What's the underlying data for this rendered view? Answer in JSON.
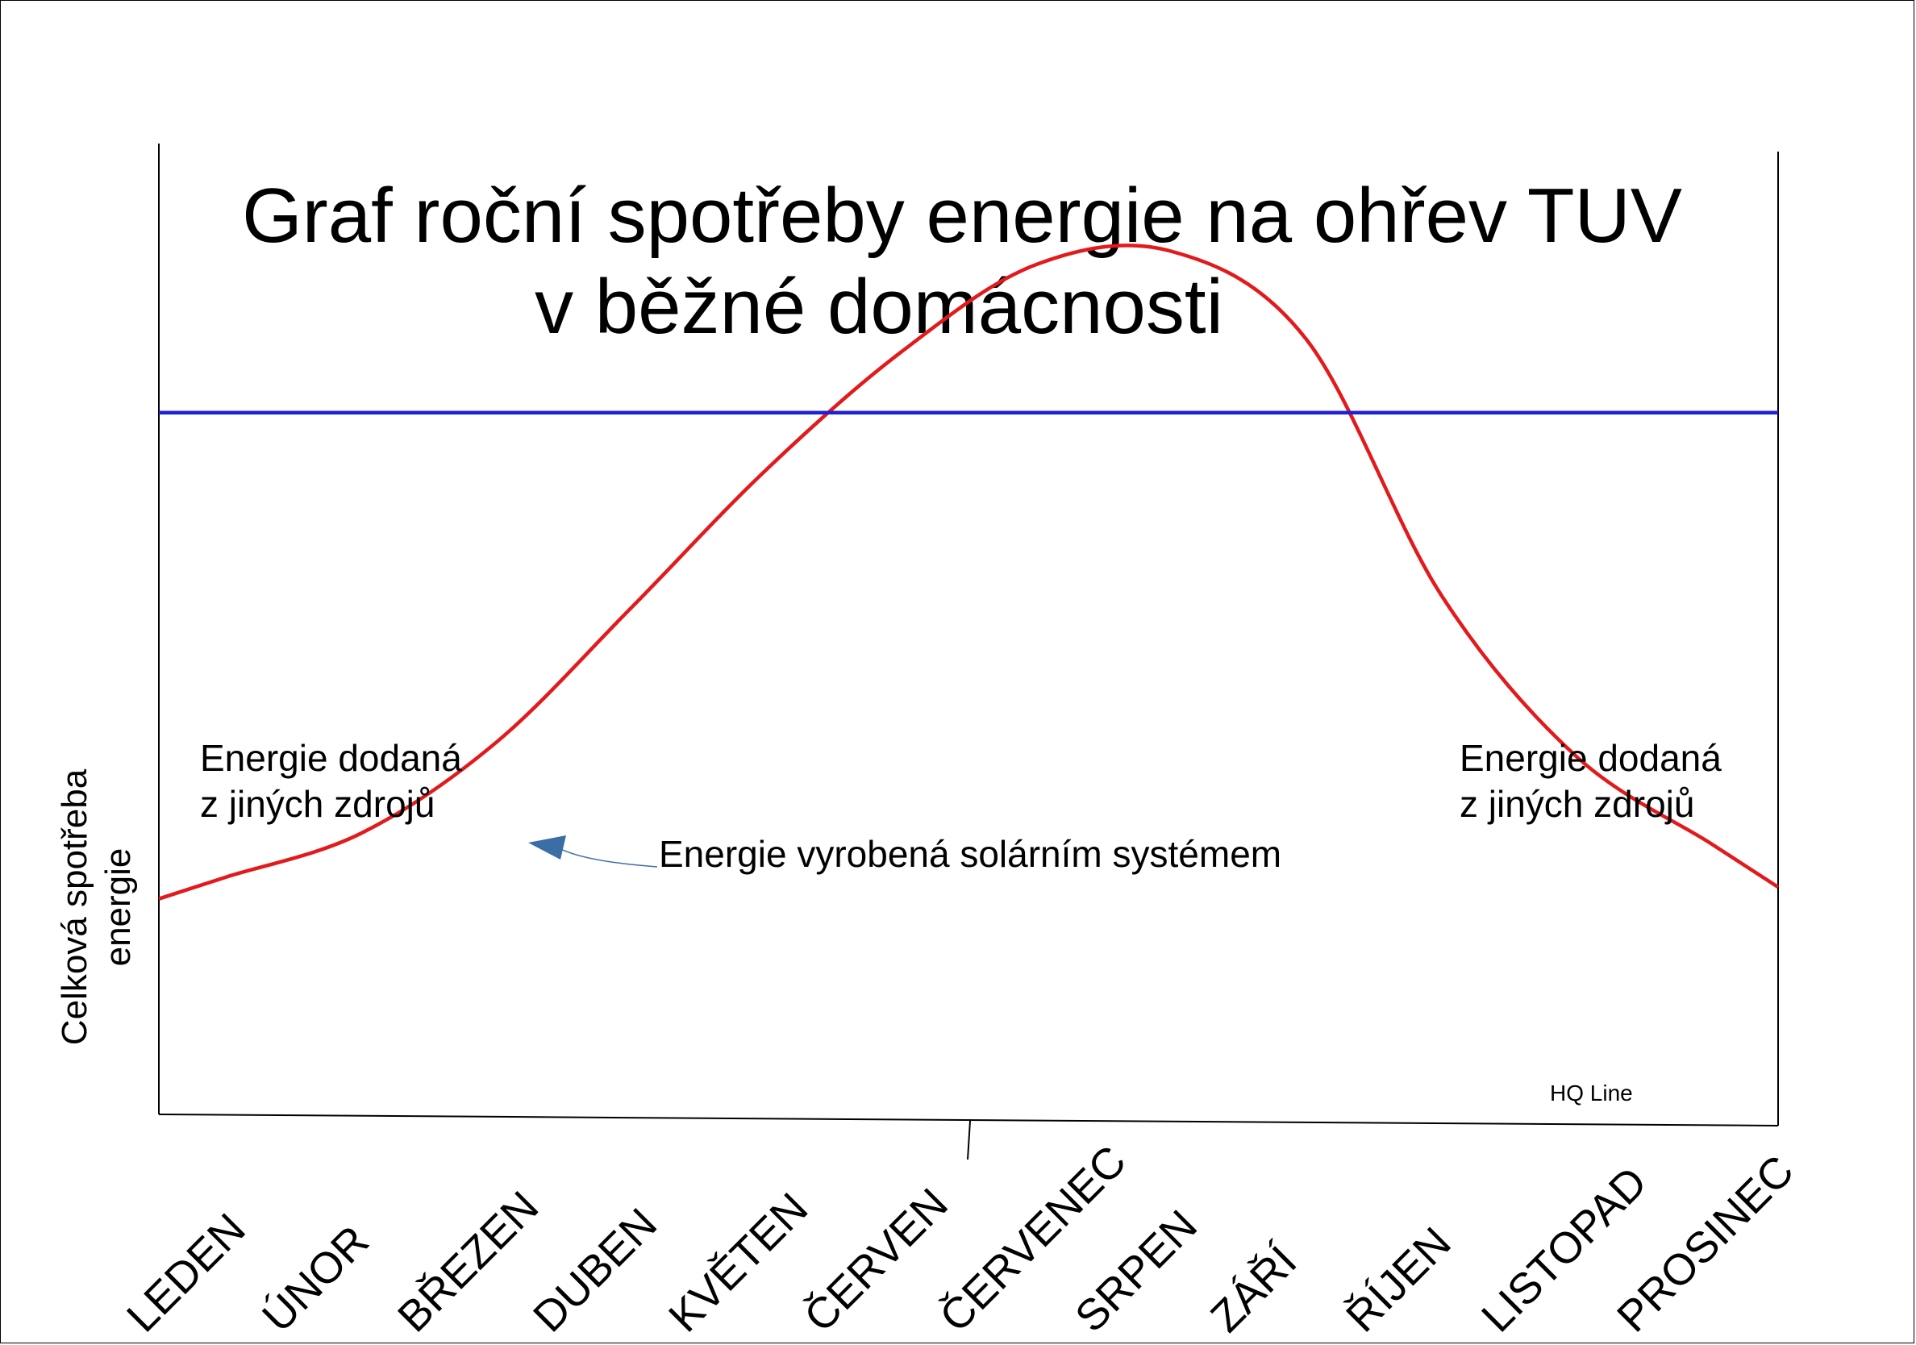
{
  "chart_data": {
    "type": "line",
    "title_lines": [
      "Graf roční spotřeby energie na ohřev TUV",
      "v běžné domácnosti"
    ],
    "ylabel_lines": [
      "Celková spotřeba",
      "energie"
    ],
    "xlabel": "",
    "categories": [
      "LEDEN",
      "ÚNOR",
      "BŘEZEN",
      "DUBEN",
      "KVĚTEN",
      "ČERVEN",
      "ČERVENEC",
      "SRPEN",
      "ZÁŘÍ",
      "ŘÍJEN",
      "LISTOPAD",
      "PROSINEC"
    ],
    "series": [
      {
        "name": "",
        "color": "#e31a1c",
        "values": [
          0.12,
          0.25,
          0.52,
          0.92,
          1.33,
          1.68,
          1.94,
          1.98,
          1.72,
          0.96,
          0.48,
          0.22
        ]
      },
      {
        "name": "",
        "color": "#1f1fd6",
        "values": [
          1.5,
          1.5,
          1.5,
          1.5,
          1.5,
          1.5,
          1.5,
          1.5,
          1.5,
          1.5,
          1.5,
          1.5
        ]
      }
    ],
    "ylim": [
      -0.6,
      2.3
    ],
    "grid": false,
    "legend": "none",
    "annotations": [
      {
        "id": "left",
        "lines": [
          "Energie dodaná",
          "z jiných zdrojů"
        ]
      },
      {
        "id": "right",
        "lines": [
          "Energie dodaná",
          "z jiných zdrojů"
        ]
      },
      {
        "id": "solar",
        "lines": [
          "Energie vyrobená solárním systémem"
        ]
      },
      {
        "id": "brand",
        "lines": [
          "HQ Line"
        ]
      }
    ]
  },
  "colors": {
    "curve": "#e31a1c",
    "level": "#1f1fd6",
    "arrow": "#3a6ea5",
    "axis": "#000000"
  }
}
